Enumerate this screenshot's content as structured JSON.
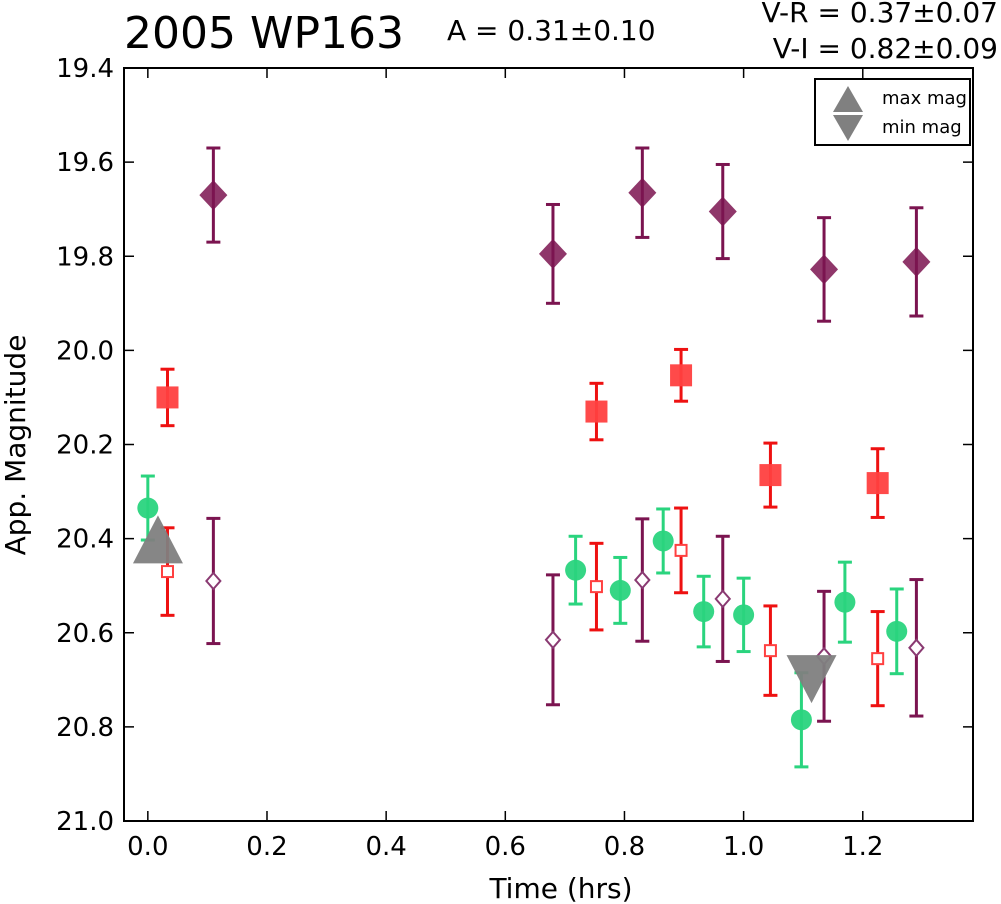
{
  "header": {
    "title": "2005 WP163",
    "amplitude": "A  = 0.31±0.10",
    "color_vr": "V-R = 0.37±0.07",
    "color_vi": "V-I  = 0.82±0.09"
  },
  "legend": {
    "max_label": "max mag",
    "min_label": "min mag"
  },
  "colors": {
    "diamond": "#7b1450",
    "diamond_open": "#8a3a72",
    "square": "#ff4040",
    "square_err": "#ee1111",
    "circle": "#2ad47e",
    "marker_gray": "#808080"
  },
  "chart_data": {
    "type": "scatter",
    "xlabel": "Time (hrs)",
    "ylabel": "App. Magnitude",
    "xlim": [
      -0.04,
      1.385
    ],
    "ylim": [
      19.4,
      21.0
    ],
    "y_inverted": true,
    "x_ticks": [
      "0.0",
      "0.2",
      "0.4",
      "0.6",
      "0.8",
      "1.0",
      "1.2"
    ],
    "y_ticks": [
      "19.4",
      "19.6",
      "19.8",
      "20.0",
      "20.2",
      "20.4",
      "20.6",
      "20.8",
      "21.0"
    ],
    "grid": false,
    "legend_position": "top-right",
    "series": [
      {
        "marker": "diamond-filled",
        "color": "#7b1450",
        "points": [
          {
            "x": 0.11,
            "y": 19.67,
            "err": 0.1
          },
          {
            "x": 0.68,
            "y": 19.795,
            "err": 0.105
          },
          {
            "x": 0.83,
            "y": 19.665,
            "err": 0.095
          },
          {
            "x": 0.965,
            "y": 19.705,
            "err": 0.1
          },
          {
            "x": 1.135,
            "y": 19.828,
            "err": 0.11
          },
          {
            "x": 1.29,
            "y": 19.812,
            "err": 0.115
          }
        ]
      },
      {
        "marker": "square-filled",
        "color": "#ff4040",
        "points": [
          {
            "x": 0.033,
            "y": 20.1,
            "err": 0.06
          },
          {
            "x": 0.753,
            "y": 20.13,
            "err": 0.06
          },
          {
            "x": 0.895,
            "y": 20.053,
            "err": 0.055
          },
          {
            "x": 1.045,
            "y": 20.265,
            "err": 0.068
          },
          {
            "x": 1.225,
            "y": 20.282,
            "err": 0.073
          }
        ]
      },
      {
        "marker": "circle-filled",
        "color": "#2ad47e",
        "points": [
          {
            "x": 0.0,
            "y": 20.335,
            "err": 0.068
          },
          {
            "x": 0.718,
            "y": 20.467,
            "err": 0.072
          },
          {
            "x": 0.793,
            "y": 20.51,
            "err": 0.07
          },
          {
            "x": 0.865,
            "y": 20.405,
            "err": 0.068
          },
          {
            "x": 0.933,
            "y": 20.555,
            "err": 0.075
          },
          {
            "x": 1.0,
            "y": 20.562,
            "err": 0.078
          },
          {
            "x": 1.097,
            "y": 20.785,
            "err": 0.1
          },
          {
            "x": 1.17,
            "y": 20.535,
            "err": 0.085
          },
          {
            "x": 1.257,
            "y": 20.597,
            "err": 0.09
          }
        ]
      },
      {
        "marker": "square-open",
        "color": "#ff4040",
        "points": [
          {
            "x": 0.033,
            "y": 20.47,
            "err": 0.093
          },
          {
            "x": 0.753,
            "y": 20.502,
            "err": 0.092
          },
          {
            "x": 0.895,
            "y": 20.425,
            "err": 0.09
          },
          {
            "x": 1.045,
            "y": 20.638,
            "err": 0.095
          },
          {
            "x": 1.225,
            "y": 20.655,
            "err": 0.1
          }
        ]
      },
      {
        "marker": "diamond-open",
        "color": "#8a3a72",
        "points": [
          {
            "x": 0.11,
            "y": 20.49,
            "err": 0.133
          },
          {
            "x": 0.68,
            "y": 20.615,
            "err": 0.138
          },
          {
            "x": 0.83,
            "y": 20.488,
            "err": 0.13
          },
          {
            "x": 0.965,
            "y": 20.528,
            "err": 0.133
          },
          {
            "x": 1.135,
            "y": 20.65,
            "err": 0.138
          },
          {
            "x": 1.29,
            "y": 20.632,
            "err": 0.145
          }
        ]
      }
    ],
    "max_mag_marker": {
      "x": 0.017,
      "y": 20.41
    },
    "min_mag_marker": {
      "x": 1.114,
      "y": 20.69
    }
  }
}
